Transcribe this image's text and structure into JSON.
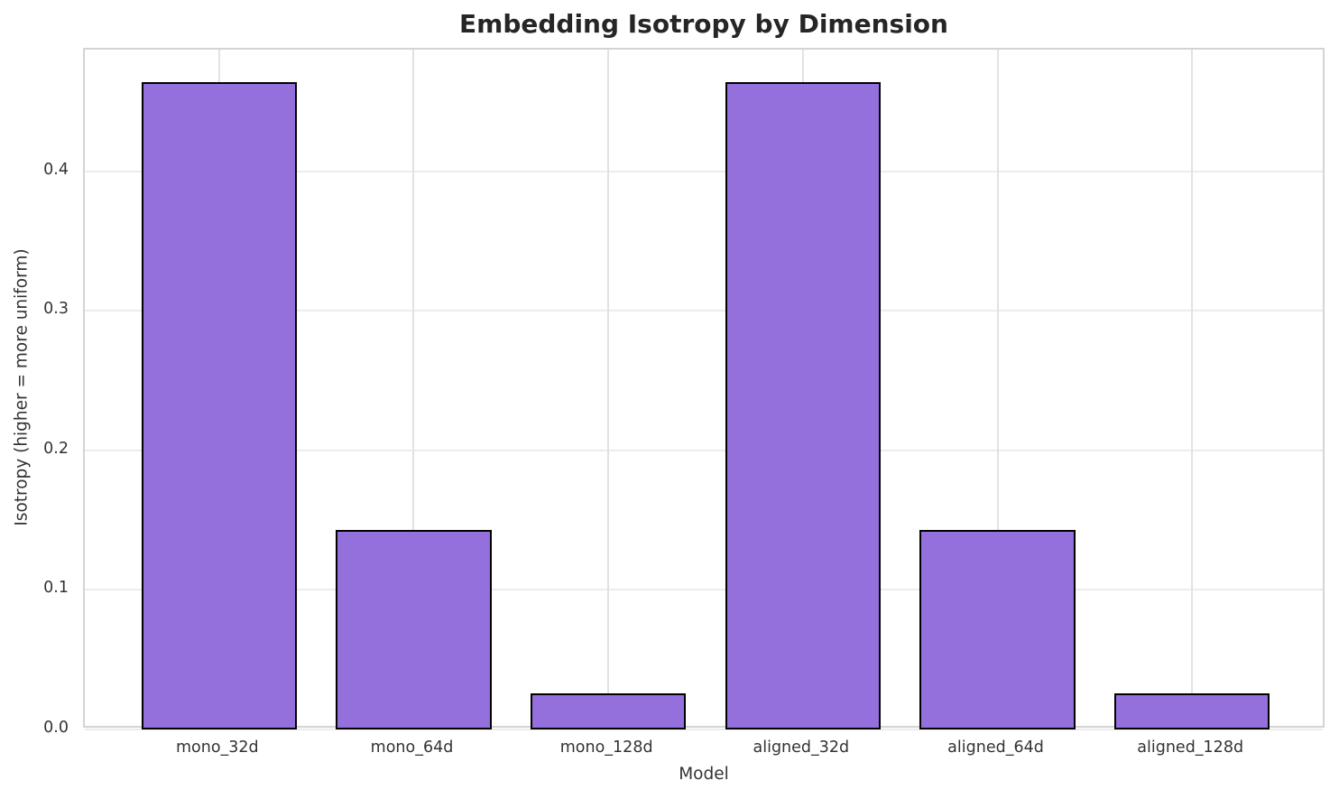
{
  "chart_data": {
    "type": "bar",
    "title": "Embedding Isotropy by Dimension",
    "xlabel": "Model",
    "ylabel": "Isotropy (higher = more uniform)",
    "categories": [
      "mono_32d",
      "mono_64d",
      "mono_128d",
      "aligned_32d",
      "aligned_64d",
      "aligned_128d"
    ],
    "values": [
      0.464,
      0.143,
      0.026,
      0.464,
      0.143,
      0.026
    ],
    "yticks": [
      0.0,
      0.1,
      0.2,
      0.3,
      0.4
    ],
    "ylim": [
      0,
      0.487
    ],
    "grid": "on",
    "legend": "none",
    "bar_color": "#9370DB",
    "bar_edge_color": "#000000"
  }
}
